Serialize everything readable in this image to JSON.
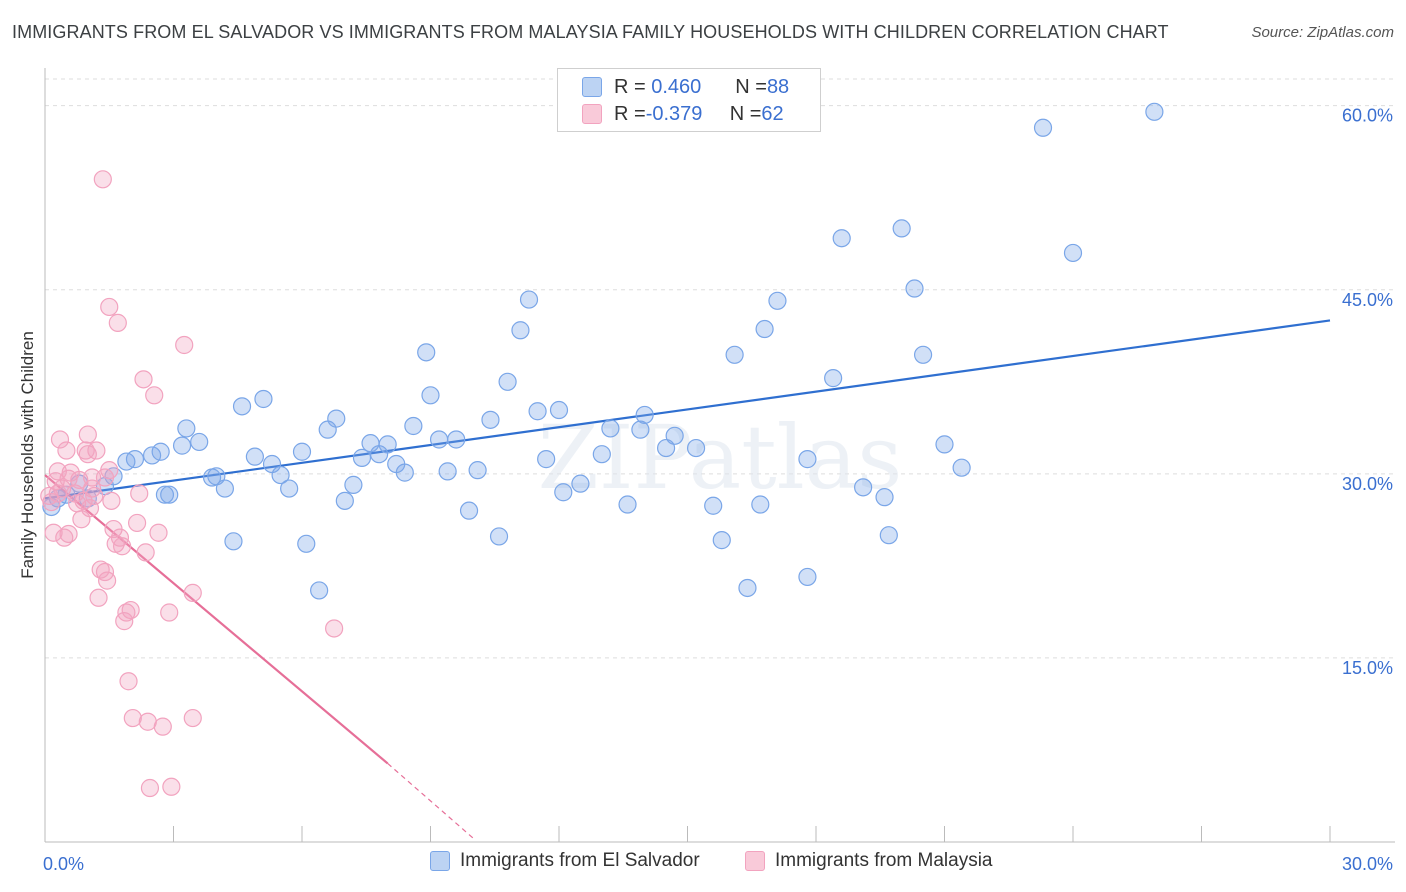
{
  "title": "IMMIGRANTS FROM EL SALVADOR VS IMMIGRANTS FROM MALAYSIA FAMILY HOUSEHOLDS WITH CHILDREN CORRELATION CHART",
  "source": "Source: ZipAtlas.com",
  "watermark": "ZIPatlas",
  "legend_top": [
    {
      "r_label": "R = ",
      "r_value": "0.460",
      "n_label": "N = ",
      "n_value": "88"
    },
    {
      "r_label": "R = ",
      "r_value": "-0.379",
      "n_label": "N = ",
      "n_value": "62"
    }
  ],
  "chart_data": {
    "type": "scatter",
    "ylabel": "Family Households with Children",
    "xlim": [
      0,
      30
    ],
    "ylim": [
      0,
      62.5
    ],
    "x_tick_labels": {
      "left": "0.0%",
      "right": "30.0%"
    },
    "y_ticks": [
      {
        "value": 15,
        "label": "15.0%"
      },
      {
        "value": 30,
        "label": "30.0%"
      },
      {
        "value": 45,
        "label": "45.0%"
      },
      {
        "value": 60,
        "label": "60.0%"
      }
    ],
    "grid": true,
    "legend_position": "bottom",
    "series": [
      {
        "name": "Immigrants from El Salvador",
        "color": "#7aa6e8",
        "line_color": "#2f6fd0",
        "trend": {
          "x0": 0,
          "y0": 28.0,
          "x1": 30,
          "y1": 42.5
        },
        "points": [
          [
            0.15,
            27.3
          ],
          [
            0.3,
            28.0
          ],
          [
            0.5,
            28.3
          ],
          [
            0.8,
            29.2
          ],
          [
            1.0,
            28.0
          ],
          [
            1.4,
            29.0
          ],
          [
            1.6,
            29.8
          ],
          [
            1.9,
            31.0
          ],
          [
            2.1,
            31.2
          ],
          [
            2.5,
            31.5
          ],
          [
            2.7,
            31.8
          ],
          [
            2.8,
            28.3
          ],
          [
            2.9,
            28.3
          ],
          [
            3.2,
            32.3
          ],
          [
            3.3,
            33.7
          ],
          [
            3.6,
            32.6
          ],
          [
            3.9,
            29.7
          ],
          [
            4.0,
            29.8
          ],
          [
            4.2,
            28.8
          ],
          [
            4.4,
            24.5
          ],
          [
            4.6,
            35.5
          ],
          [
            4.9,
            31.4
          ],
          [
            5.1,
            36.1
          ],
          [
            5.3,
            30.8
          ],
          [
            5.5,
            29.9
          ],
          [
            5.7,
            28.8
          ],
          [
            6.0,
            31.8
          ],
          [
            6.1,
            24.3
          ],
          [
            6.4,
            20.5
          ],
          [
            6.6,
            33.6
          ],
          [
            6.8,
            34.5
          ],
          [
            7.0,
            27.8
          ],
          [
            7.2,
            29.1
          ],
          [
            7.4,
            31.3
          ],
          [
            7.6,
            32.5
          ],
          [
            7.8,
            31.6
          ],
          [
            8.0,
            32.4
          ],
          [
            8.2,
            30.8
          ],
          [
            8.4,
            30.1
          ],
          [
            8.6,
            33.9
          ],
          [
            8.9,
            39.9
          ],
          [
            9.0,
            36.4
          ],
          [
            9.2,
            32.8
          ],
          [
            9.4,
            30.2
          ],
          [
            9.6,
            32.8
          ],
          [
            9.9,
            27.0
          ],
          [
            10.1,
            30.3
          ],
          [
            10.4,
            34.4
          ],
          [
            10.6,
            24.9
          ],
          [
            10.8,
            37.5
          ],
          [
            11.1,
            41.7
          ],
          [
            11.3,
            44.2
          ],
          [
            11.5,
            35.1
          ],
          [
            11.7,
            31.2
          ],
          [
            12.0,
            35.2
          ],
          [
            12.1,
            28.5
          ],
          [
            12.5,
            29.2
          ],
          [
            13.0,
            31.6
          ],
          [
            13.2,
            33.7
          ],
          [
            13.6,
            27.5
          ],
          [
            13.9,
            33.6
          ],
          [
            14.0,
            34.8
          ],
          [
            14.5,
            32.1
          ],
          [
            14.7,
            33.1
          ],
          [
            15.2,
            32.1
          ],
          [
            15.6,
            27.4
          ],
          [
            15.8,
            24.6
          ],
          [
            16.1,
            39.7
          ],
          [
            16.4,
            20.7
          ],
          [
            16.7,
            27.5
          ],
          [
            16.8,
            41.8
          ],
          [
            17.1,
            44.1
          ],
          [
            17.8,
            31.2
          ],
          [
            17.8,
            21.6
          ],
          [
            18.4,
            37.8
          ],
          [
            18.6,
            49.2
          ],
          [
            19.1,
            28.9
          ],
          [
            19.6,
            28.1
          ],
          [
            19.7,
            25.0
          ],
          [
            20.0,
            50.0
          ],
          [
            20.3,
            45.1
          ],
          [
            20.5,
            39.7
          ],
          [
            21.0,
            32.4
          ],
          [
            21.4,
            30.5
          ],
          [
            23.3,
            58.2
          ],
          [
            24.0,
            48.0
          ],
          [
            25.9,
            59.5
          ]
        ]
      },
      {
        "name": "Immigrants from Malaysia",
        "color": "#f2a3bf",
        "line_color": "#e66f98",
        "trend": {
          "x0": 0,
          "y0": 29.9,
          "x1": 8.0,
          "y1": 6.4
        },
        "trend_dashed_to": {
          "x": 10.0,
          "y": 0.3
        },
        "points": [
          [
            0.1,
            28.2
          ],
          [
            0.15,
            27.7
          ],
          [
            0.2,
            25.2
          ],
          [
            0.25,
            29.4
          ],
          [
            0.3,
            28.4
          ],
          [
            0.3,
            30.2
          ],
          [
            0.35,
            32.8
          ],
          [
            0.4,
            28.8
          ],
          [
            0.45,
            24.8
          ],
          [
            0.5,
            31.9
          ],
          [
            0.55,
            29.6
          ],
          [
            0.55,
            25.1
          ],
          [
            0.6,
            30.1
          ],
          [
            0.7,
            28.4
          ],
          [
            0.75,
            27.6
          ],
          [
            0.8,
            29.5
          ],
          [
            0.85,
            26.3
          ],
          [
            0.9,
            27.8
          ],
          [
            0.95,
            31.9
          ],
          [
            1.0,
            33.2
          ],
          [
            1.0,
            31.6
          ],
          [
            1.05,
            27.2
          ],
          [
            1.1,
            29.7
          ],
          [
            1.1,
            28.8
          ],
          [
            1.15,
            28.2
          ],
          [
            1.2,
            31.9
          ],
          [
            1.25,
            19.9
          ],
          [
            1.3,
            22.2
          ],
          [
            1.35,
            54.0
          ],
          [
            1.4,
            29.7
          ],
          [
            1.4,
            22.0
          ],
          [
            1.45,
            21.3
          ],
          [
            1.5,
            43.6
          ],
          [
            1.5,
            30.3
          ],
          [
            1.55,
            27.8
          ],
          [
            1.6,
            25.5
          ],
          [
            1.65,
            24.3
          ],
          [
            1.7,
            42.3
          ],
          [
            1.75,
            24.8
          ],
          [
            1.8,
            24.1
          ],
          [
            1.85,
            18.0
          ],
          [
            1.9,
            18.7
          ],
          [
            1.95,
            13.1
          ],
          [
            2.0,
            18.9
          ],
          [
            2.05,
            10.1
          ],
          [
            2.15,
            26.0
          ],
          [
            2.2,
            28.4
          ],
          [
            2.3,
            37.7
          ],
          [
            2.35,
            23.6
          ],
          [
            2.4,
            9.8
          ],
          [
            2.45,
            4.4
          ],
          [
            2.55,
            36.4
          ],
          [
            2.65,
            25.2
          ],
          [
            2.75,
            9.4
          ],
          [
            2.9,
            18.7
          ],
          [
            2.95,
            4.5
          ],
          [
            3.25,
            40.5
          ],
          [
            3.45,
            20.3
          ],
          [
            3.45,
            10.1
          ],
          [
            6.75,
            17.4
          ]
        ]
      }
    ]
  }
}
